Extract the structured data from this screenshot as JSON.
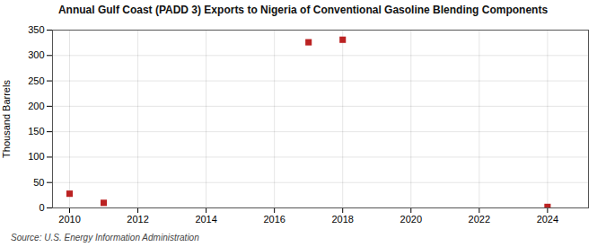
{
  "chart_data": {
    "type": "scatter",
    "title": "Annual Gulf Coast (PADD 3) Exports to Nigeria of Conventional Gasoline Blending Components",
    "ylabel": "Thousand Barrels",
    "source": "Source: U.S. Energy Information Administration",
    "x": [
      2010,
      2011,
      2017,
      2018,
      2024
    ],
    "values": [
      28,
      10,
      326,
      331,
      2
    ],
    "color": "#bb2222",
    "marker": "square",
    "xlim": [
      2009.5,
      2025.2
    ],
    "ylim": [
      0,
      350
    ],
    "xticks": [
      2010,
      2012,
      2014,
      2016,
      2018,
      2020,
      2022,
      2024
    ],
    "yticks": [
      0,
      50,
      100,
      150,
      200,
      250,
      300,
      350
    ],
    "grid": true
  }
}
